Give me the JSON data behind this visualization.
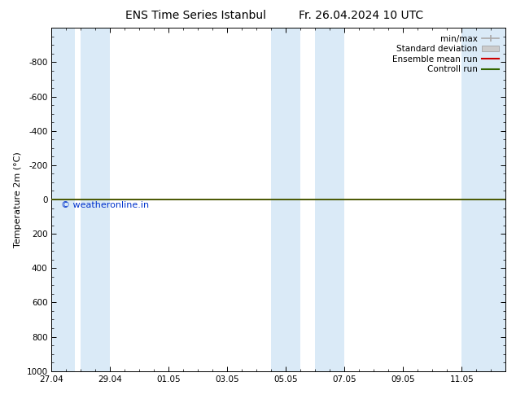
{
  "title": "ENS Time Series Istanbul",
  "title2": "Fr. 26.04.2024 10 UTC",
  "ylabel": "Temperature 2m (°C)",
  "ylim_bottom": 1000,
  "ylim_top": -1000,
  "yticks": [
    -800,
    -600,
    -400,
    -200,
    0,
    200,
    400,
    600,
    800,
    1000
  ],
  "xtick_labels": [
    "27.04",
    "29.04",
    "01.05",
    "03.05",
    "05.05",
    "07.05",
    "09.05",
    "11.05"
  ],
  "xtick_positions": [
    0,
    2,
    4,
    6,
    8,
    10,
    12,
    14
  ],
  "xlim": [
    0,
    15.5
  ],
  "bg_color": "#ffffff",
  "plot_bg_color": "#ffffff",
  "shaded_bands": [
    [
      0,
      0.8
    ],
    [
      1.0,
      2.0
    ],
    [
      7.5,
      8.5
    ],
    [
      9.0,
      10.0
    ],
    [
      14.0,
      15.5
    ]
  ],
  "shaded_color": "#daeaf7",
  "green_line_color": "#336600",
  "red_line_color": "#cc0000",
  "watermark": "© weatheronline.in",
  "watermark_color": "#0033cc",
  "legend_labels": [
    "min/max",
    "Standard deviation",
    "Ensemble mean run",
    "Controll run"
  ],
  "font_size_title": 10,
  "font_size_axis": 8,
  "font_size_ticks": 7.5,
  "font_size_legend": 7.5,
  "font_size_watermark": 8
}
